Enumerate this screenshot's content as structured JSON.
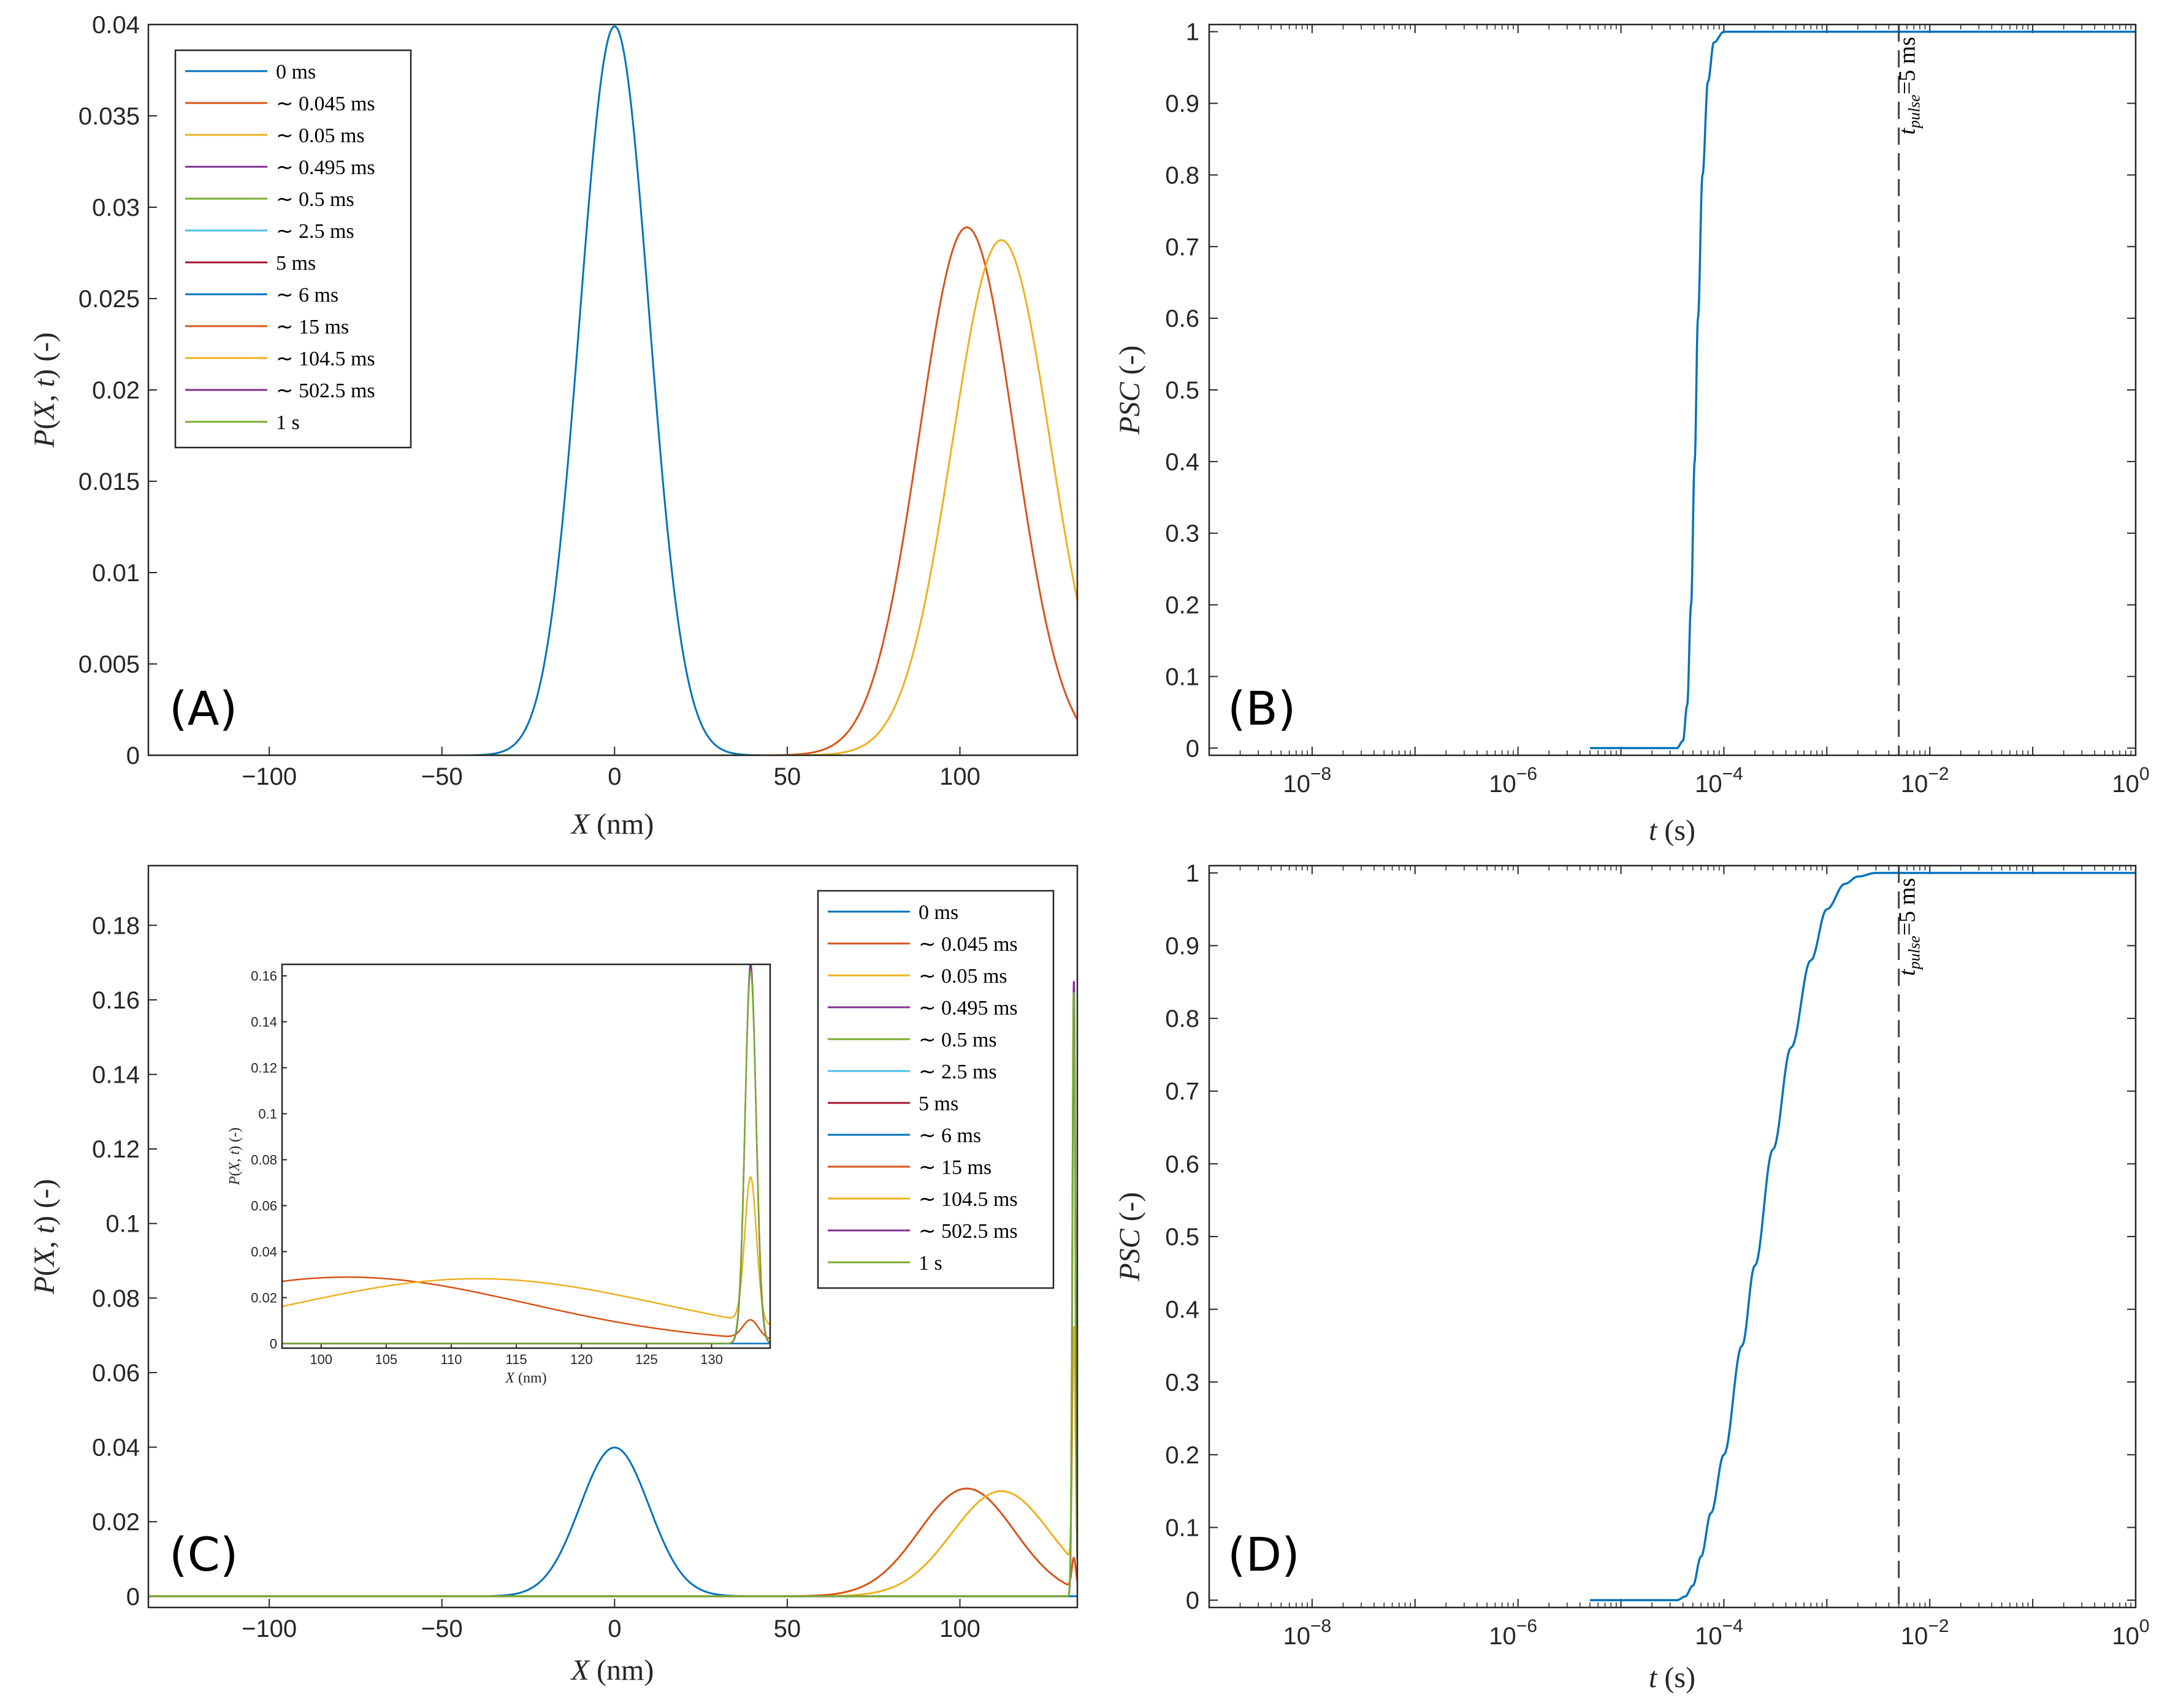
{
  "colors": {
    "c1": "#0072BD",
    "c2": "#D95319",
    "c3": "#EDB120",
    "c4": "#7E2F8E",
    "c5": "#77AC30",
    "c6": "#4DBEEE",
    "c7": "#A2142F",
    "axis": "#262626"
  },
  "legend": [
    {
      "label": "0 ms",
      "color": "#0072BD"
    },
    {
      "label": "∼ 0.045 ms",
      "color": "#D95319"
    },
    {
      "label": "∼ 0.05 ms",
      "color": "#EDB120"
    },
    {
      "label": "∼ 0.495 ms",
      "color": "#7E2F8E"
    },
    {
      "label": "∼ 0.5 ms",
      "color": "#77AC30"
    },
    {
      "label": "∼ 2.5 ms",
      "color": "#4DBEEE"
    },
    {
      "label": "5 ms",
      "color": "#A2142F"
    },
    {
      "label": "∼ 6 ms",
      "color": "#0072BD"
    },
    {
      "label": "∼ 15 ms",
      "color": "#D95319"
    },
    {
      "label": "∼ 104.5 ms",
      "color": "#EDB120"
    },
    {
      "label": "∼ 502.5 ms",
      "color": "#7E2F8E"
    },
    {
      "label": "1 s",
      "color": "#77AC30"
    }
  ],
  "chart_data": [
    {
      "id": "A",
      "panel_label": "(A)",
      "type": "line",
      "xlabel": "X (nm)",
      "ylabel": "P(X,t) (-)",
      "xlim": [
        -135,
        134
      ],
      "ylim": [
        0,
        0.04
      ],
      "xticks": [
        -100,
        -50,
        0,
        50,
        100
      ],
      "xtick_labels": [
        "−100",
        "−50",
        "0",
        "50",
        "100"
      ],
      "yticks": [
        0,
        0.005,
        0.01,
        0.015,
        0.02,
        0.025,
        0.03,
        0.035,
        0.04
      ],
      "ytick_labels": [
        "0",
        "0.005",
        "0.01",
        "0.015",
        "0.02",
        "0.025",
        "0.03",
        "0.035",
        "0.04"
      ],
      "legend_position": "top-left",
      "series": [
        {
          "name": "0 ms",
          "color": "#0072BD",
          "shape": "gaussian",
          "mu": 0,
          "sigma": 10,
          "peak": 0.0399
        },
        {
          "name": "∼ 0.045 ms",
          "color": "#D95319",
          "shape": "gaussian",
          "mu": 102,
          "sigma": 13.8,
          "peak": 0.0289
        },
        {
          "name": "∼ 0.05 ms",
          "color": "#EDB120",
          "shape": "gaussian",
          "mu": 112,
          "sigma": 14.2,
          "peak": 0.0282
        },
        {
          "name": "1 s",
          "color": "#77AC30",
          "shape": "flat",
          "value": 0
        }
      ]
    },
    {
      "id": "B",
      "panel_label": "(B)",
      "type": "line",
      "xscale": "log",
      "xlabel": "t (s)",
      "ylabel": "PSC (-)",
      "xlim": [
        1e-09,
        1
      ],
      "ylim": [
        -0.01,
        1.01
      ],
      "xtick_exponents": [
        -8,
        -6,
        -4,
        -2,
        0
      ],
      "xtick_labels": [
        "10",
        "10",
        "10",
        "10",
        "10"
      ],
      "xtick_powers": [
        "−8",
        "−6",
        "−4",
        "−2",
        "0"
      ],
      "yticks": [
        0,
        0.1,
        0.2,
        0.3,
        0.4,
        0.5,
        0.6,
        0.7,
        0.8,
        0.9,
        1
      ],
      "ytick_labels": [
        "0",
        "0.1",
        "0.2",
        "0.3",
        "0.4",
        "0.5",
        "0.6",
        "0.7",
        "0.8",
        "0.9",
        "1"
      ],
      "series": [
        {
          "name": "PSC",
          "color": "#0072BD",
          "t": [
            5e-06,
            3.5e-05,
            4e-05,
            4.4e-05,
            4.8e-05,
            5.2e-05,
            5.6e-05,
            6.2e-05,
            7e-05,
            8e-05,
            0.0001,
            0.001,
            1
          ],
          "y": [
            0,
            0,
            0.01,
            0.06,
            0.2,
            0.4,
            0.6,
            0.8,
            0.93,
            0.985,
            1,
            1,
            1
          ]
        }
      ],
      "vline": {
        "t": 0.005,
        "label": "t_pulse=5 ms",
        "label_main": "t",
        "label_sub": "pulse",
        "label_tail": "=5 ms"
      }
    },
    {
      "id": "C",
      "panel_label": "(C)",
      "type": "line",
      "xlabel": "X (nm)",
      "ylabel": "P(X,t) (-)",
      "xlim": [
        -135,
        134
      ],
      "ylim": [
        -0.003,
        0.196
      ],
      "xticks": [
        -100,
        -50,
        0,
        50,
        100
      ],
      "xtick_labels": [
        "−100",
        "−50",
        "0",
        "50",
        "100"
      ],
      "yticks": [
        0,
        0.02,
        0.04,
        0.06,
        0.08,
        0.1,
        0.12,
        0.14,
        0.16,
        0.18
      ],
      "ytick_labels": [
        "0",
        "0.02",
        "0.04",
        "0.06",
        "0.08",
        "0.1",
        "0.12",
        "0.14",
        "0.16",
        "0.18"
      ],
      "legend_position": "top-right",
      "series": [
        {
          "name": "0 ms",
          "color": "#0072BD",
          "shape": "gaussian",
          "mu": 0,
          "sigma": 10,
          "peak": 0.0399
        },
        {
          "name": "∼ 0.045 ms",
          "color": "#D95319",
          "shape": "gaussian",
          "mu": 102,
          "sigma": 13.8,
          "peak": 0.0289,
          "spike": {
            "x": 133,
            "h": 0.008,
            "w": 0.6
          }
        },
        {
          "name": "∼ 0.05 ms",
          "color": "#EDB120",
          "shape": "gaussian",
          "mu": 112,
          "sigma": 14.2,
          "peak": 0.0282,
          "spike": {
            "x": 133,
            "h": 0.063,
            "w": 0.45
          }
        },
        {
          "name": "∼ 0.495 ms",
          "color": "#7E2F8E",
          "shape": "spike",
          "x": 133,
          "h": 0.165,
          "w": 0.42
        },
        {
          "name": "1 s",
          "color": "#77AC30",
          "shape": "spike",
          "x": 133,
          "h": 0.162,
          "w": 0.43
        }
      ],
      "inset": {
        "xlabel": "X (nm)",
        "ylabel": "P(X,t) (-)",
        "xlim": [
          97,
          134.5
        ],
        "ylim": [
          -0.002,
          0.165
        ],
        "xticks": [
          100,
          105,
          110,
          115,
          120,
          125,
          130
        ],
        "xtick_labels": [
          "100",
          "105",
          "110",
          "115",
          "120",
          "125",
          "130"
        ],
        "yticks": [
          0,
          0.02,
          0.04,
          0.06,
          0.08,
          0.1,
          0.12,
          0.14,
          0.16
        ],
        "ytick_labels": [
          "0",
          "0.02",
          "0.04",
          "0.06",
          "0.08",
          "0.1",
          "0.12",
          "0.14",
          "0.16"
        ]
      }
    },
    {
      "id": "D",
      "panel_label": "(D)",
      "type": "line",
      "xscale": "log",
      "xlabel": "t (s)",
      "ylabel": "PSC (-)",
      "xlim": [
        1e-09,
        1
      ],
      "ylim": [
        -0.01,
        1.01
      ],
      "xtick_exponents": [
        -8,
        -6,
        -4,
        -2,
        0
      ],
      "xtick_labels": [
        "10",
        "10",
        "10",
        "10",
        "10"
      ],
      "xtick_powers": [
        "−8",
        "−6",
        "−4",
        "−2",
        "0"
      ],
      "yticks": [
        0,
        0.1,
        0.2,
        0.3,
        0.4,
        0.5,
        0.6,
        0.7,
        0.8,
        0.9,
        1
      ],
      "ytick_labels": [
        "0",
        "0.1",
        "0.2",
        "0.3",
        "0.4",
        "0.5",
        "0.6",
        "0.7",
        "0.8",
        "0.9",
        "1"
      ],
      "series": [
        {
          "name": "PSC",
          "color": "#0072BD",
          "t": [
            5e-06,
            3.5e-05,
            4.2e-05,
            5e-05,
            6e-05,
            7.5e-05,
            0.0001,
            0.00015,
            0.0002,
            0.0003,
            0.00045,
            0.0007,
            0.001,
            0.0015,
            0.002,
            0.003,
            1
          ],
          "y": [
            0,
            0,
            0.005,
            0.02,
            0.06,
            0.12,
            0.2,
            0.35,
            0.46,
            0.62,
            0.76,
            0.88,
            0.95,
            0.985,
            0.995,
            1,
            1
          ]
        }
      ],
      "vline": {
        "t": 0.005,
        "label": "t_pulse=5 ms",
        "label_main": "t",
        "label_sub": "pulse",
        "label_tail": "=5 ms"
      }
    }
  ]
}
